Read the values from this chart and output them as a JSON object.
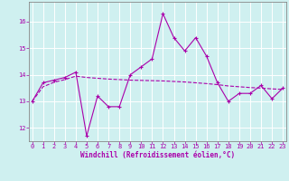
{
  "title": "",
  "xlabel": "Windchill (Refroidissement éolien,°C)",
  "ylabel": "",
  "bg_color": "#cff0f0",
  "line_color": "#aa00aa",
  "x": [
    0,
    1,
    2,
    3,
    4,
    5,
    6,
    7,
    8,
    9,
    10,
    11,
    12,
    13,
    14,
    15,
    16,
    17,
    18,
    19,
    20,
    21,
    22,
    23
  ],
  "y_data": [
    13.0,
    13.7,
    13.8,
    13.9,
    14.1,
    11.7,
    13.2,
    12.8,
    12.8,
    14.0,
    14.3,
    14.6,
    16.3,
    15.4,
    14.9,
    15.4,
    14.7,
    13.7,
    13.0,
    13.3,
    13.3,
    13.6,
    13.1,
    13.5
  ],
  "y_smooth": [
    13.0,
    13.55,
    13.72,
    13.82,
    13.95,
    13.9,
    13.87,
    13.84,
    13.82,
    13.8,
    13.79,
    13.78,
    13.77,
    13.75,
    13.73,
    13.7,
    13.67,
    13.63,
    13.58,
    13.55,
    13.52,
    13.5,
    13.47,
    13.45
  ],
  "ylim": [
    11.5,
    16.75
  ],
  "yticks": [
    12,
    13,
    14,
    15,
    16
  ],
  "xticks": [
    0,
    1,
    2,
    3,
    4,
    5,
    6,
    7,
    8,
    9,
    10,
    11,
    12,
    13,
    14,
    15,
    16,
    17,
    18,
    19,
    20,
    21,
    22,
    23
  ],
  "figsize": [
    3.2,
    2.0
  ],
  "dpi": 100,
  "grid_color": "#ffffff",
  "spine_color": "#888888",
  "tick_fontsize": 5.0,
  "xlabel_fontsize": 5.5,
  "marker_size": 3.5,
  "line_width": 0.8
}
